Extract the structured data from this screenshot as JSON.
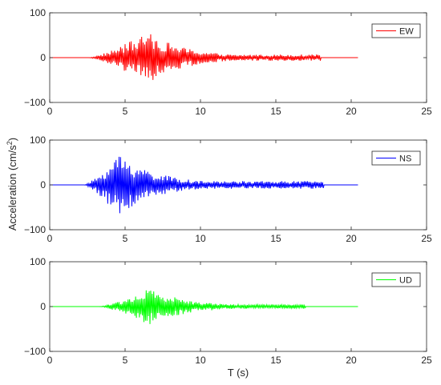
{
  "figure": {
    "ylabel_text": "Acceleration (cm/s",
    "ylabel_sup": "2",
    "ylabel_close": ")",
    "xlabel": "T (s)"
  },
  "chart_data": [
    {
      "type": "line",
      "series": [
        {
          "name": "EW",
          "color": "#ff0000",
          "t_range": [
            0,
            20.48
          ],
          "active": [
            2.6,
            18.0
          ],
          "peak_t": 6.5,
          "peak_abs": 57
        }
      ],
      "xlim": [
        0,
        25
      ],
      "ylim": [
        -100,
        100
      ],
      "xticks": [
        0,
        5,
        10,
        15,
        20,
        25
      ],
      "yticks": [
        -100,
        0,
        100
      ],
      "xtick_labels": [
        "0",
        "5",
        "10",
        "15",
        "20",
        "25"
      ],
      "ytick_labels": [
        "−100",
        "0",
        "100"
      ],
      "legend_placement": "top-right",
      "grid": false
    },
    {
      "type": "line",
      "series": [
        {
          "name": "NS",
          "color": "#0000ff",
          "t_range": [
            0,
            20.48
          ],
          "active": [
            2.3,
            18.2
          ],
          "peak_t": 4.6,
          "peak_abs": 70
        }
      ],
      "xlim": [
        0,
        25
      ],
      "ylim": [
        -100,
        100
      ],
      "xticks": [
        0,
        5,
        10,
        15,
        20,
        25
      ],
      "yticks": [
        -100,
        0,
        100
      ],
      "xtick_labels": [
        "0",
        "5",
        "10",
        "15",
        "20",
        "25"
      ],
      "ytick_labels": [
        "−100",
        "0",
        "100"
      ],
      "legend_placement": "top-right",
      "grid": false
    },
    {
      "type": "line",
      "series": [
        {
          "name": "UD",
          "color": "#00ff00",
          "t_range": [
            0,
            20.48
          ],
          "active": [
            3.3,
            17.0
          ],
          "peak_t": 6.6,
          "peak_abs": 40
        }
      ],
      "xlim": [
        0,
        25
      ],
      "ylim": [
        -100,
        100
      ],
      "xticks": [
        0,
        5,
        10,
        15,
        20,
        25
      ],
      "yticks": [
        -100,
        0,
        100
      ],
      "xtick_labels": [
        "0",
        "5",
        "10",
        "15",
        "20",
        "25"
      ],
      "ytick_labels": [
        "−100",
        "0",
        "100"
      ],
      "legend_placement": "top-right",
      "grid": false
    }
  ]
}
